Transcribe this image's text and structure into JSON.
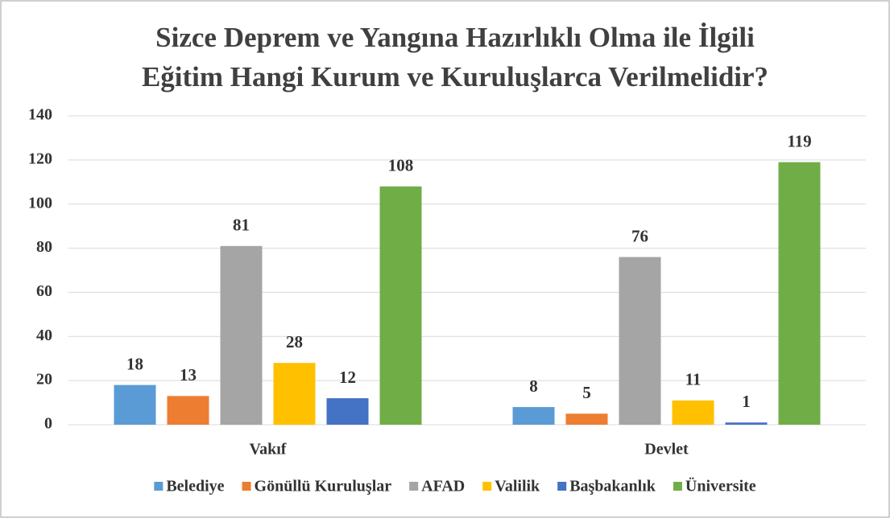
{
  "chart_data": {
    "type": "bar",
    "title": [
      "Sizce Deprem ve Yangına Hazırlıklı Olma ile İlgili",
      "Eğitim Hangi Kurum ve Kuruluşlarca Verilmelidir?"
    ],
    "categories": [
      "Vakıf",
      "Devlet"
    ],
    "series": [
      {
        "name": "Belediye",
        "color": "#5b9bd5",
        "values": [
          18,
          8
        ]
      },
      {
        "name": "Gönüllü Kuruluşlar",
        "color": "#ed7d31",
        "values": [
          13,
          5
        ]
      },
      {
        "name": "AFAD",
        "color": "#a5a5a5",
        "values": [
          81,
          76
        ]
      },
      {
        "name": "Valilik",
        "color": "#ffc000",
        "values": [
          28,
          11
        ]
      },
      {
        "name": "Başbakanlık",
        "color": "#4472c4",
        "values": [
          12,
          1
        ]
      },
      {
        "name": "Üniversite",
        "color": "#70ad47",
        "values": [
          108,
          119
        ]
      }
    ],
    "ylim": [
      0,
      140
    ],
    "yticks": [
      0,
      20,
      40,
      60,
      80,
      100,
      120,
      140
    ],
    "grid": true,
    "legend": "bottom"
  }
}
